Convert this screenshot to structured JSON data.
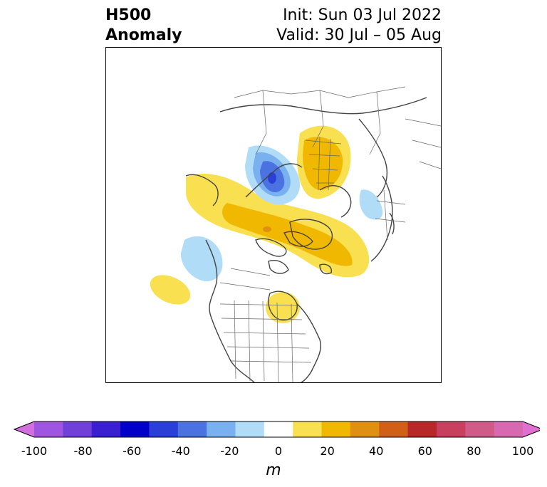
{
  "header": {
    "title_line1": "H500",
    "title_line2": "Anomaly",
    "init_label": "Init: Sun 03 Jul 2022",
    "valid_label": "Valid: 30 Jul – 05 Aug"
  },
  "colorbar": {
    "unit": "m",
    "ticks": [
      "-100",
      "-80",
      "-60",
      "-40",
      "-20",
      "0",
      "20",
      "40",
      "60",
      "80",
      "100"
    ],
    "colors": [
      "#d36ee0",
      "#a055e0",
      "#7040d8",
      "#3a20d0",
      "#0000c8",
      "#2a3fd8",
      "#4a72e0",
      "#78b0f0",
      "#b0dcf8",
      "#ffffff",
      "#f8e050",
      "#f0b800",
      "#e09010",
      "#d06018",
      "#b82828",
      "#c84060",
      "#d05a88",
      "#d868b0",
      "#e070d0"
    ]
  },
  "map": {
    "features": [
      {
        "name": "negative-anomaly-greenland",
        "sign": "negative",
        "value": -40
      },
      {
        "name": "positive-anomaly-siberia",
        "sign": "positive",
        "value": 20
      },
      {
        "name": "positive-anomaly-arctic-band",
        "sign": "positive",
        "value": 30
      },
      {
        "name": "negative-anomaly-north-pacific",
        "sign": "negative",
        "value": -10
      },
      {
        "name": "positive-anomaly-hudson-bay",
        "sign": "positive",
        "value": 10
      },
      {
        "name": "positive-anomaly-gulf-alaska",
        "sign": "positive",
        "value": 10
      },
      {
        "name": "negative-anomaly-east-asia",
        "sign": "negative",
        "value": -10
      }
    ]
  }
}
